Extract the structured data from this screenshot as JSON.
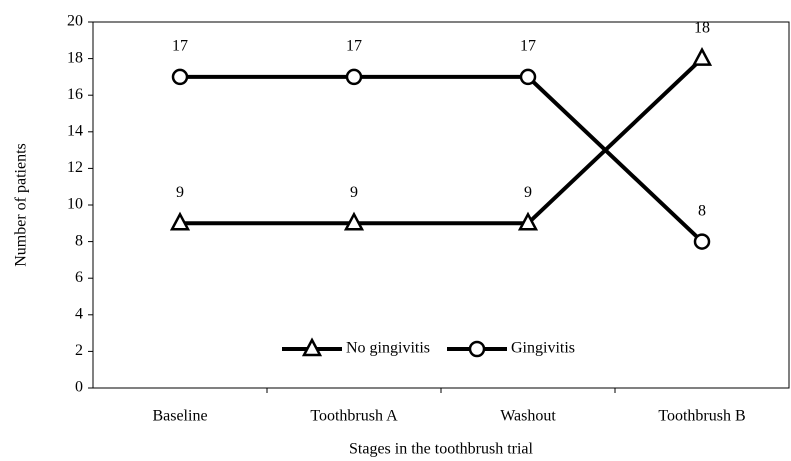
{
  "chart_data": {
    "type": "line",
    "x_label": "Stages in the toothbrush trial",
    "y_label": "Number of patients",
    "categories": [
      "Baseline",
      "Toothbrush A",
      "Washout",
      "Toothbrush B"
    ],
    "series": [
      {
        "name": "No gingivitis",
        "color": "#000000",
        "marker": "triangle",
        "values": [
          9,
          9,
          9,
          18
        ]
      },
      {
        "name": "Gingivitis",
        "color": "#000000",
        "marker": "circle",
        "values": [
          17,
          17,
          17,
          8
        ]
      }
    ],
    "ylim": [
      0,
      20
    ],
    "yticks": [
      0,
      2,
      4,
      6,
      8,
      10,
      12,
      14,
      16,
      18,
      20
    ],
    "grid": false,
    "legend": "lower center",
    "data_labels": true
  }
}
